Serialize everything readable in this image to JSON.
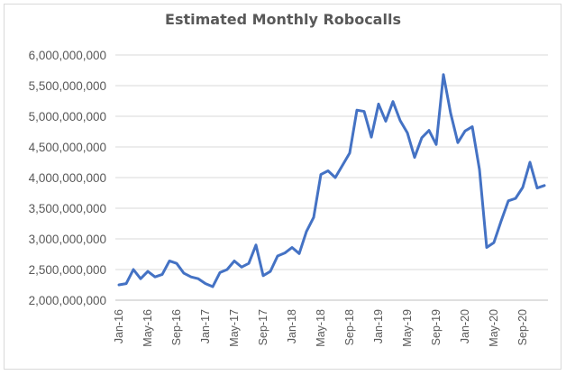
{
  "chart_data": {
    "type": "line",
    "title": "Estimated Monthly Robocalls",
    "xlabel": "",
    "ylabel": "",
    "ylim": [
      2000000000,
      6000000000
    ],
    "grid": true,
    "legend": "none",
    "line_color": "#4472c4",
    "y_tick_labels": [
      "2,000,000,000",
      "2,500,000,000",
      "3,000,000,000",
      "3,500,000,000",
      "4,000,000,000",
      "4,500,000,000",
      "5,000,000,000",
      "5,500,000,000",
      "6,000,000,000"
    ],
    "x_tick_labels": [
      "Jan-16",
      "May-16",
      "Sep-16",
      "Jan-17",
      "May-17",
      "Sep-17",
      "Jan-18",
      "May-18",
      "Sep-18",
      "Jan-19",
      "May-19",
      "Sep-19",
      "Jan-20",
      "May-20",
      "Sep-20"
    ],
    "x": [
      "Jan-16",
      "Feb-16",
      "Mar-16",
      "Apr-16",
      "May-16",
      "Jun-16",
      "Jul-16",
      "Aug-16",
      "Sep-16",
      "Oct-16",
      "Nov-16",
      "Dec-16",
      "Jan-17",
      "Feb-17",
      "Mar-17",
      "Apr-17",
      "May-17",
      "Jun-17",
      "Jul-17",
      "Aug-17",
      "Sep-17",
      "Oct-17",
      "Nov-17",
      "Dec-17",
      "Jan-18",
      "Feb-18",
      "Mar-18",
      "Apr-18",
      "May-18",
      "Jun-18",
      "Jul-18",
      "Aug-18",
      "Sep-18",
      "Oct-18",
      "Nov-18",
      "Dec-18",
      "Jan-19",
      "Feb-19",
      "Mar-19",
      "Apr-19",
      "May-19",
      "Jun-19",
      "Jul-19",
      "Aug-19",
      "Sep-19",
      "Oct-19",
      "Nov-19",
      "Dec-19",
      "Jan-20",
      "Feb-20",
      "Mar-20",
      "Apr-20",
      "May-20",
      "Jun-20",
      "Jul-20",
      "Aug-20",
      "Sep-20",
      "Oct-20",
      "Nov-20",
      "Dec-20"
    ],
    "series": [
      {
        "values": [
          2250000000,
          2270000000,
          2500000000,
          2350000000,
          2470000000,
          2380000000,
          2420000000,
          2640000000,
          2600000000,
          2440000000,
          2380000000,
          2350000000,
          2270000000,
          2220000000,
          2450000000,
          2500000000,
          2640000000,
          2540000000,
          2600000000,
          2900000000,
          2400000000,
          2470000000,
          2720000000,
          2770000000,
          2860000000,
          2760000000,
          3120000000,
          3350000000,
          4050000000,
          4110000000,
          4000000000,
          4200000000,
          4400000000,
          5100000000,
          5080000000,
          4660000000,
          5200000000,
          4920000000,
          5240000000,
          4930000000,
          4730000000,
          4330000000,
          4650000000,
          4770000000,
          4540000000,
          5680000000,
          5050000000,
          4570000000,
          4760000000,
          4830000000,
          4130000000,
          2860000000,
          2940000000,
          3290000000,
          3620000000,
          3660000000,
          3840000000,
          4250000000,
          3830000000,
          3870000000
        ]
      }
    ]
  }
}
